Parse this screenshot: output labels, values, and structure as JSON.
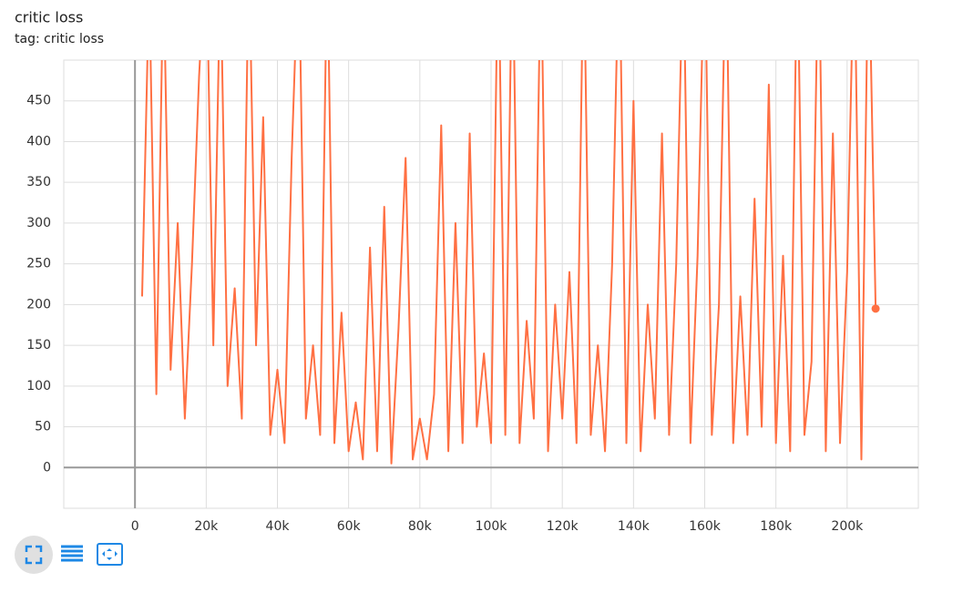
{
  "chart_data": {
    "type": "line",
    "title": "critic loss",
    "subtitle": "tag: critic loss",
    "x": [
      2000,
      4000,
      6000,
      8000,
      10000,
      12000,
      14000,
      16000,
      18000,
      20000,
      22000,
      24000,
      26000,
      28000,
      30000,
      32000,
      34000,
      36000,
      38000,
      40000,
      42000,
      44000,
      46000,
      48000,
      50000,
      52000,
      54000,
      56000,
      58000,
      60000,
      62000,
      64000,
      66000,
      68000,
      70000,
      72000,
      74000,
      76000,
      78000,
      80000,
      82000,
      84000,
      86000,
      88000,
      90000,
      92000,
      94000,
      96000,
      98000,
      100000,
      102000,
      104000,
      106000,
      108000,
      110000,
      112000,
      114000,
      116000,
      118000,
      120000,
      122000,
      124000,
      126000,
      128000,
      130000,
      132000,
      134000,
      136000,
      138000,
      140000,
      142000,
      144000,
      146000,
      148000,
      150000,
      152000,
      154000,
      156000,
      158000,
      160000,
      162000,
      164000,
      166000,
      168000,
      170000,
      172000,
      174000,
      176000,
      178000,
      180000,
      182000,
      184000,
      186000,
      188000,
      190000,
      192000,
      194000,
      196000,
      198000,
      200000,
      202000,
      204000,
      206000,
      208000
    ],
    "series": [
      {
        "color": "#ff7043",
        "values": [
          210,
          600,
          90,
          620,
          120,
          300,
          60,
          250,
          480,
          650,
          150,
          620,
          100,
          220,
          60,
          640,
          150,
          430,
          40,
          120,
          30,
          380,
          640,
          60,
          150,
          40,
          640,
          30,
          190,
          20,
          80,
          10,
          270,
          20,
          320,
          5,
          170,
          380,
          10,
          60,
          10,
          90,
          420,
          20,
          300,
          30,
          410,
          50,
          140,
          30,
          650,
          40,
          660,
          30,
          180,
          60,
          640,
          20,
          200,
          60,
          240,
          30,
          650,
          40,
          150,
          20,
          250,
          650,
          30,
          450,
          20,
          200,
          60,
          410,
          40,
          250,
          640,
          30,
          260,
          650,
          40,
          200,
          650,
          30,
          210,
          40,
          330,
          50,
          470,
          30,
          260,
          20,
          650,
          40,
          130,
          660,
          20,
          410,
          30,
          240,
          650,
          10,
          660,
          195
        ]
      }
    ],
    "xlim": [
      -20000,
      220000
    ],
    "ylim": [
      -50,
      500
    ],
    "xticks": [
      0,
      {
        "value": 20000,
        "label": "20k"
      },
      {
        "value": 40000,
        "label": "40k"
      },
      {
        "value": 60000,
        "label": "60k"
      },
      {
        "value": 80000,
        "label": "80k"
      },
      {
        "value": 100000,
        "label": "100k"
      },
      {
        "value": 120000,
        "label": "120k"
      },
      {
        "value": 140000,
        "label": "140k"
      },
      {
        "value": 160000,
        "label": "160k"
      },
      {
        "value": 180000,
        "label": "180k"
      },
      {
        "value": 200000,
        "label": "200k"
      }
    ],
    "yticks": [
      0,
      50,
      100,
      150,
      200,
      250,
      300,
      350,
      400,
      450
    ],
    "grid": true
  }
}
